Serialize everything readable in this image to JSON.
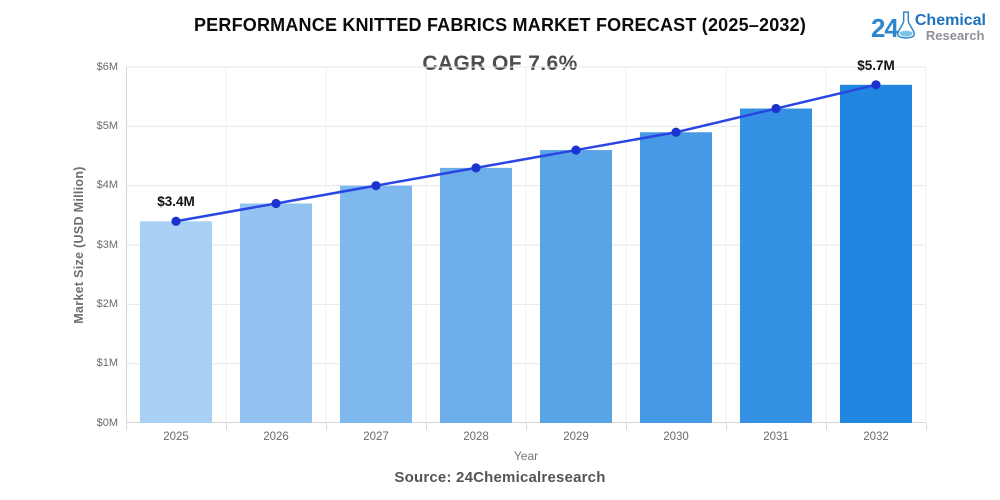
{
  "header": {
    "title": "PERFORMANCE KNITTED FABRICS MARKET FORECAST (2025–2032)",
    "subtitle": "CAGR OF 7.6%"
  },
  "logo": {
    "number": "24",
    "line1": "Chemical",
    "line2": "Research"
  },
  "footer": {
    "source": "Source: 24Chemicalresearch"
  },
  "chart_data": {
    "type": "bar",
    "overlay": "line",
    "title": "PERFORMANCE KNITTED FABRICS MARKET FORECAST (2025–2032)",
    "subtitle": "CAGR OF 7.6%",
    "categories": [
      "2025",
      "2026",
      "2027",
      "2028",
      "2029",
      "2030",
      "2031",
      "2032"
    ],
    "values": [
      3.4,
      3.7,
      4.0,
      4.3,
      4.6,
      4.9,
      5.3,
      5.7
    ],
    "xlabel": "Year",
    "ylabel": "Market Size (USD Million)",
    "ylim": [
      0,
      6
    ],
    "y_ticks": [
      "$0M",
      "$1M",
      "$2M",
      "$3M",
      "$4M",
      "$5M",
      "$6M"
    ],
    "grid": true,
    "legend": false,
    "bar_colors": [
      "#a9d0f5",
      "#93c4f1",
      "#7eb8ee",
      "#6caeea",
      "#59a3e7",
      "#4699e4",
      "#3390e2",
      "#2186e0"
    ],
    "line_color": "#2946e3",
    "marker_color": "#1c33d0",
    "grid_color_h": "#e7e7e7",
    "grid_color_v": "#f0f0f1",
    "axis_color": "#d6d6d6",
    "annotations": [
      {
        "index": 0,
        "text": "$3.4M"
      },
      {
        "index": 7,
        "text": "$5.7M"
      }
    ]
  }
}
